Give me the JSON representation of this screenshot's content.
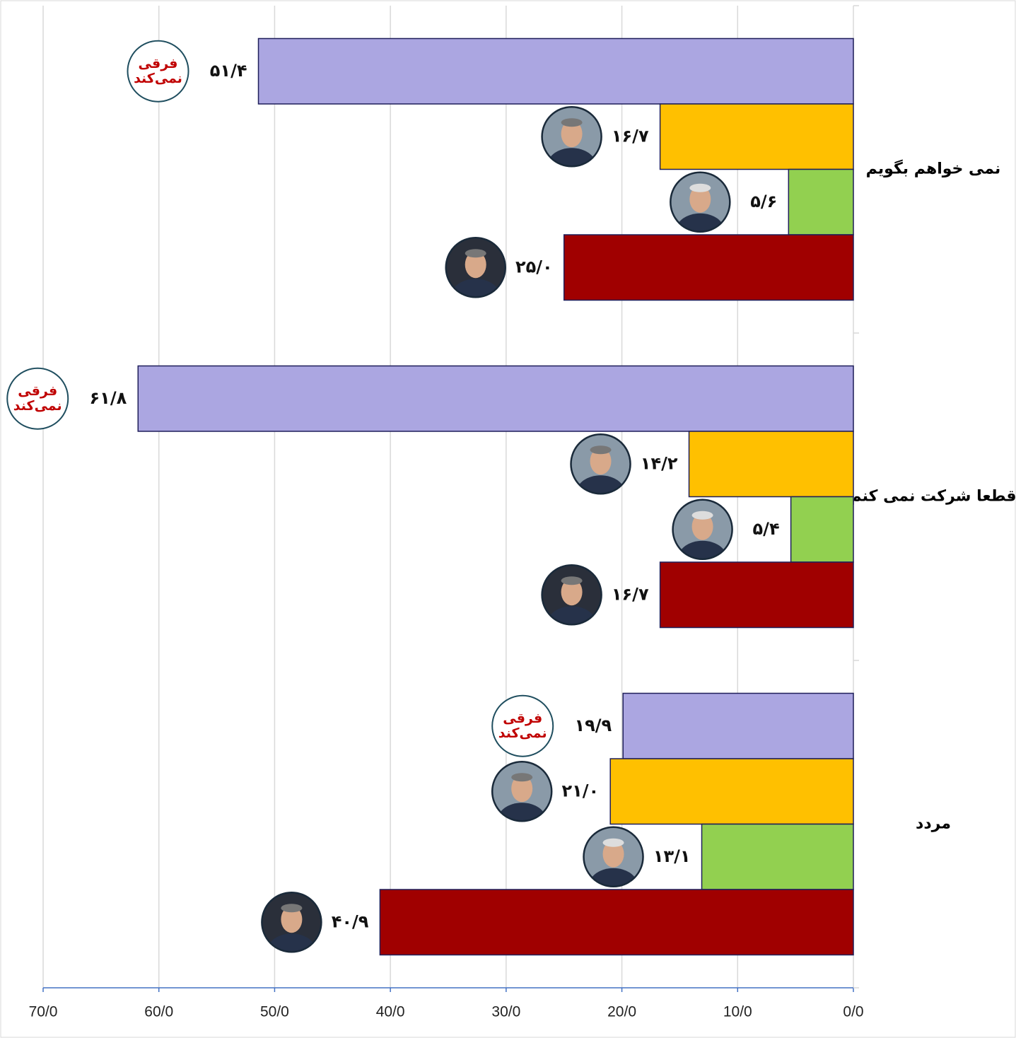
{
  "chart_data": {
    "type": "bar",
    "orientation": "horizontal",
    "x_reversed": true,
    "categories": [
      "نمی خواهم بگویم",
      "قطعا شرکت نمی کنم",
      "مردد"
    ],
    "series": [
      {
        "name": "فرقی نمی‌کند",
        "color": "#aba6e1",
        "values": [
          51.4,
          61.8,
          19.9
        ],
        "value_labels": [
          "۵۱/۴",
          "۶۱/۸",
          "۱۹/۹"
        ]
      },
      {
        "color": "#ffc000",
        "values": [
          16.7,
          14.2,
          21.0
        ],
        "value_labels": [
          "۱۶/۷",
          "۱۴/۲",
          "۲۱/۰"
        ]
      },
      {
        "color": "#92d050",
        "values": [
          5.6,
          5.4,
          13.1
        ],
        "value_labels": [
          "۵/۶",
          "۵/۴",
          "۱۳/۱"
        ]
      },
      {
        "color": "#a00000",
        "values": [
          25.0,
          16.7,
          40.9
        ],
        "value_labels": [
          "۲۵/۰",
          "۱۶/۷",
          "۴۰/۹"
        ]
      }
    ],
    "xlim": [
      0,
      70
    ],
    "xticks": [
      {
        "value": 0,
        "label": "0/0"
      },
      {
        "value": 10,
        "label": "10/0"
      },
      {
        "value": 20,
        "label": "20/0"
      },
      {
        "value": 30,
        "label": "30/0"
      },
      {
        "value": 40,
        "label": "40/0"
      },
      {
        "value": 50,
        "label": "50/0"
      },
      {
        "value": 60,
        "label": "60/0"
      },
      {
        "value": 70,
        "label": "70/0"
      }
    ],
    "grid": true
  }
}
